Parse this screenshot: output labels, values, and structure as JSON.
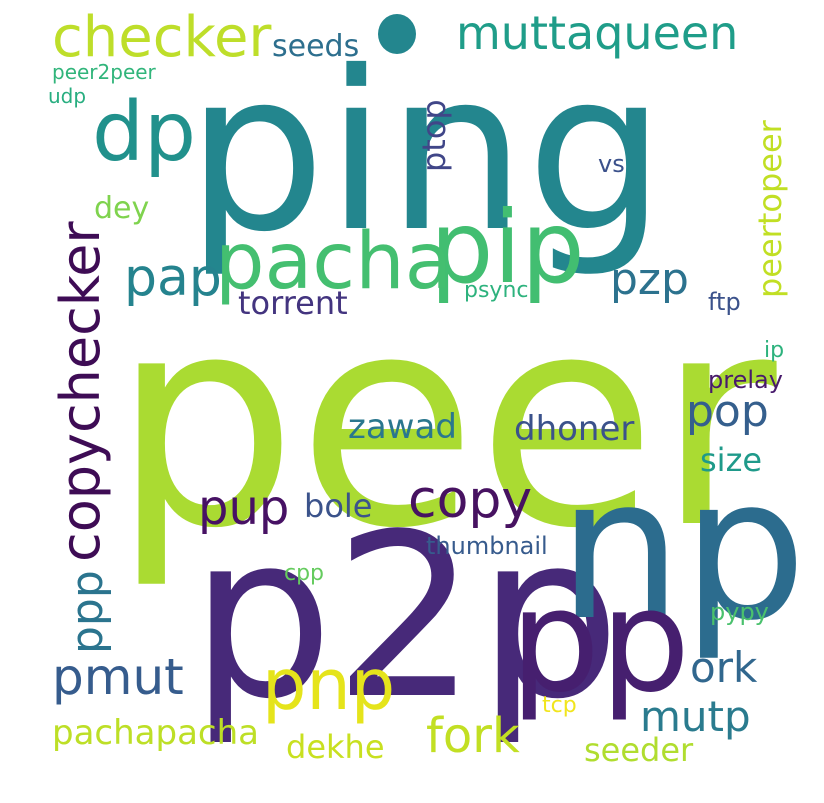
{
  "words": [
    {
      "text": "ping",
      "color": "#23868e"
    },
    {
      "text": "peer",
      "color": "#aadb32"
    },
    {
      "text": "p2p",
      "color": "#472979"
    },
    {
      "text": "np",
      "color": "#2c6c8e"
    },
    {
      "text": "pp",
      "color": "#461f6f"
    },
    {
      "text": "pip",
      "color": "#42be71"
    },
    {
      "text": "pacha",
      "color": "#44bf70"
    },
    {
      "text": "pnp",
      "color": "#e5e41b"
    },
    {
      "text": "checker",
      "color": "#bede2a"
    },
    {
      "text": "muttaqueen",
      "color": "#1f9d89"
    },
    {
      "text": "dp",
      "color": "#21918c"
    },
    {
      "text": "copychecker",
      "color": "#3e0c55"
    },
    {
      "text": "copy",
      "color": "#471261"
    },
    {
      "text": "pap",
      "color": "#25838e"
    },
    {
      "text": "pzp",
      "color": "#2c728e"
    },
    {
      "text": "pop",
      "color": "#355f8d"
    },
    {
      "text": "fork",
      "color": "#c2df23"
    },
    {
      "text": "pmut",
      "color": "#365c8d"
    },
    {
      "text": "ork",
      "color": "#31678e"
    },
    {
      "text": "mutp",
      "color": "#2a7b8e"
    },
    {
      "text": "pup",
      "color": "#471164"
    },
    {
      "text": "ppp",
      "color": "#2b748e"
    },
    {
      "text": "pachapacha",
      "color": "#bddf26"
    },
    {
      "text": "seeds",
      "color": "#2d6f8e"
    },
    {
      "text": "torrent",
      "color": "#43347f"
    },
    {
      "text": "zawad",
      "color": "#2a778e"
    },
    {
      "text": "dhoner",
      "color": "#3b528b"
    },
    {
      "text": "size",
      "color": "#1f9a8a"
    },
    {
      "text": "bole",
      "color": "#3b538b"
    },
    {
      "text": "dekhe",
      "color": "#c8e020"
    },
    {
      "text": "seeder",
      "color": "#b0dd2f"
    },
    {
      "text": "peertopeer",
      "color": "#c1df24"
    },
    {
      "text": "ptop",
      "color": "#404688"
    },
    {
      "text": "dey",
      "color": "#7fd34e"
    },
    {
      "text": "peer2peer",
      "color": "#31b57b"
    },
    {
      "text": "udp",
      "color": "#28ae80"
    },
    {
      "text": "vs",
      "color": "#3b518b"
    },
    {
      "text": "psync",
      "color": "#2db27d"
    },
    {
      "text": "ftp",
      "color": "#3b528b"
    },
    {
      "text": "ip",
      "color": "#2db27d"
    },
    {
      "text": "prelay",
      "color": "#481a6c"
    },
    {
      "text": "thumbnail",
      "color": "#375b8d"
    },
    {
      "text": "cpp",
      "color": "#65cb5e"
    },
    {
      "text": "pypy",
      "color": "#4ac16d"
    },
    {
      "text": "tcp",
      "color": "#f1e51d"
    }
  ]
}
